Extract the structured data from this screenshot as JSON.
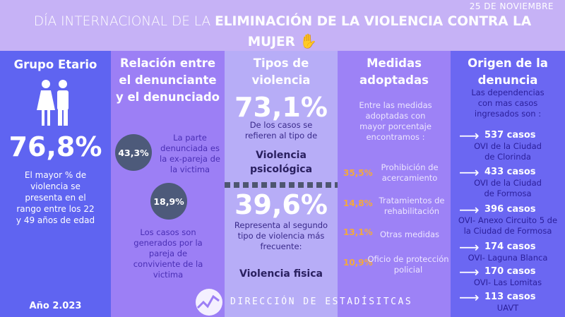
{
  "header": {
    "date": "25 DE NOVIEMBRE",
    "title_light": "DÍA INTERNACIONAL DE LA ",
    "title_bold": "ELIMINACIÓN DE LA VIOLENCIA CONTRA LA",
    "title_line2": "MUJER",
    "hand_icon": "hand-print-icon"
  },
  "grupo": {
    "title": "Grupo Etario",
    "icon": "people-icon",
    "percent": "76,8%",
    "text": "El mayor % de violencia se presenta en el rango entre los 22 y 49 años de edad",
    "year": "Año 2.023"
  },
  "relacion": {
    "title": "Relación entre el denunciante y el denunciado",
    "items": [
      {
        "percent": "43,3%",
        "text": "La parte denunciada es la ex-pareja de la victima"
      },
      {
        "percent": "18,9%",
        "text": "Los casos son generados por la pareja de conviviente de la victima"
      }
    ]
  },
  "tipos": {
    "title": "Tipos de violencia",
    "p1": "73,1%",
    "t1": "De los casos se refieren al tipo de",
    "v1": "Violencia psicológica",
    "p2": "39,6%",
    "t2": "Representa al segundo tipo de violencia más frecuente:",
    "v2": "Violencia fisica"
  },
  "medidas": {
    "title": "Medidas adoptadas",
    "intro": "Entre las medidas adoptadas con mayor porcentaje encontramos :",
    "items": [
      {
        "percent": "35,5%",
        "label": "Prohibición de acercamiento"
      },
      {
        "percent": "14,8%",
        "label": "Tratamientos de rehabilitación"
      },
      {
        "percent": "13,1%",
        "label": "Otras medidas"
      },
      {
        "percent": "10,9%",
        "label": "Oficio de protección policial"
      }
    ],
    "accent": "#f4a93b"
  },
  "origen": {
    "title": "Origen de la denuncia",
    "intro": "Las dependencias con mas casos ingresados  son :",
    "items": [
      {
        "cases": "537 casos",
        "place": "OVI de la Ciudad de Clorinda"
      },
      {
        "cases": "433 casos",
        "place": "OVI de la Ciudad de Formosa"
      },
      {
        "cases": "396 casos",
        "place": "OVI- Anexo Circuito 5 de la Ciudad de Formosa"
      },
      {
        "cases": "174 casos",
        "place": "OVI- Laguna Blanca"
      },
      {
        "cases": "170 casos",
        "place": "OVI- Las Lomitas"
      },
      {
        "cases": "113 casos",
        "place": "UAVT"
      }
    ]
  },
  "footer": {
    "org": "DIRECCIÓN DE ESTADÍSITCAS",
    "logo_icon": "statistics-logo-icon"
  }
}
